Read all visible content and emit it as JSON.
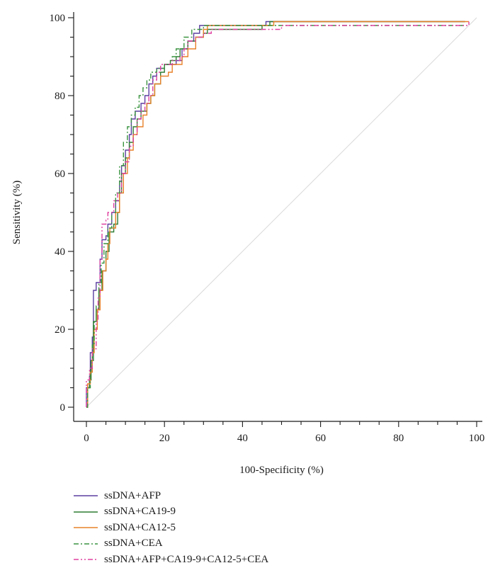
{
  "chart_data": {
    "type": "line",
    "title": "",
    "xlabel": "100-Specificity (%)",
    "ylabel": "Sensitivity (%)",
    "xlim": [
      0,
      100
    ],
    "ylim": [
      0,
      100
    ],
    "xticks": [
      0,
      20,
      40,
      60,
      80,
      100
    ],
    "yticks": [
      0,
      20,
      40,
      60,
      80,
      100
    ],
    "x_minor_step": 5,
    "y_minor_step": 5,
    "reference_line": {
      "from": [
        0,
        0
      ],
      "to": [
        100,
        100
      ],
      "color": "#d9d9d9"
    },
    "legend_position": "bottom-left",
    "series": [
      {
        "name": "ssDNA+AFP",
        "color": "#5b3fa0",
        "dash": "solid",
        "points": [
          [
            0,
            0
          ],
          [
            0,
            5
          ],
          [
            0.8,
            8
          ],
          [
            1,
            14
          ],
          [
            1.5,
            18
          ],
          [
            1.8,
            30
          ],
          [
            2.5,
            32
          ],
          [
            3.5,
            38
          ],
          [
            4,
            43
          ],
          [
            5,
            44
          ],
          [
            5.5,
            47
          ],
          [
            6.5,
            50
          ],
          [
            7.5,
            53
          ],
          [
            8.5,
            58
          ],
          [
            9,
            62
          ],
          [
            10,
            66
          ],
          [
            11,
            70
          ],
          [
            11.5,
            74
          ],
          [
            12.5,
            76
          ],
          [
            14,
            78
          ],
          [
            15,
            80
          ],
          [
            16,
            83
          ],
          [
            17,
            85
          ],
          [
            18,
            87
          ],
          [
            20,
            88
          ],
          [
            22,
            88
          ],
          [
            23,
            89
          ],
          [
            24.5,
            92
          ],
          [
            26,
            94
          ],
          [
            27.5,
            96
          ],
          [
            29,
            98
          ],
          [
            32,
            98
          ],
          [
            45,
            98
          ],
          [
            46,
            99
          ],
          [
            97,
            99
          ]
        ]
      },
      {
        "name": "ssDNA+CA19-9",
        "color": "#2e7d32",
        "dash": "solid",
        "points": [
          [
            0,
            0
          ],
          [
            0.3,
            5
          ],
          [
            0.8,
            7
          ],
          [
            1.2,
            12
          ],
          [
            1.8,
            22
          ],
          [
            2.5,
            25
          ],
          [
            3.2,
            30
          ],
          [
            4,
            35
          ],
          [
            5,
            40
          ],
          [
            5.8,
            45
          ],
          [
            7,
            47
          ],
          [
            8,
            50
          ],
          [
            8.5,
            55
          ],
          [
            9,
            60
          ],
          [
            10,
            64
          ],
          [
            11,
            68
          ],
          [
            12,
            72
          ],
          [
            13,
            74
          ],
          [
            14,
            76
          ],
          [
            15.5,
            78
          ],
          [
            16.5,
            80
          ],
          [
            17.5,
            83
          ],
          [
            19,
            86
          ],
          [
            20,
            88
          ],
          [
            21.5,
            89
          ],
          [
            23,
            90
          ],
          [
            24,
            92
          ],
          [
            26,
            94
          ],
          [
            28,
            95
          ],
          [
            30,
            96
          ],
          [
            31,
            97
          ],
          [
            45,
            98
          ],
          [
            47,
            99
          ],
          [
            97,
            99
          ]
        ]
      },
      {
        "name": "ssDNA+CA12-5",
        "color": "#e8822a",
        "dash": "solid",
        "points": [
          [
            0,
            0
          ],
          [
            0.3,
            6
          ],
          [
            1,
            9
          ],
          [
            1.5,
            14
          ],
          [
            2,
            20
          ],
          [
            2.8,
            25
          ],
          [
            3.5,
            30
          ],
          [
            4.2,
            35
          ],
          [
            5,
            38
          ],
          [
            5.5,
            42
          ],
          [
            6,
            46
          ],
          [
            7.5,
            50
          ],
          [
            8.5,
            55
          ],
          [
            9.5,
            60
          ],
          [
            10.5,
            64
          ],
          [
            11,
            66
          ],
          [
            12,
            70
          ],
          [
            13,
            72
          ],
          [
            14.5,
            75
          ],
          [
            15.5,
            78
          ],
          [
            16.5,
            80
          ],
          [
            17.5,
            83
          ],
          [
            19,
            85
          ],
          [
            21,
            86
          ],
          [
            22,
            88
          ],
          [
            24.5,
            90
          ],
          [
            26,
            92
          ],
          [
            28,
            95
          ],
          [
            30,
            97
          ],
          [
            31,
            98
          ],
          [
            48,
            99
          ],
          [
            98,
            99
          ]
        ]
      },
      {
        "name": "ssDNA+CEA",
        "color": "#3a9440",
        "dash": "dashdot",
        "points": [
          [
            0,
            0
          ],
          [
            0.3,
            5
          ],
          [
            1,
            10
          ],
          [
            1.5,
            16
          ],
          [
            2,
            22
          ],
          [
            2.5,
            26
          ],
          [
            3.2,
            32
          ],
          [
            3.8,
            37
          ],
          [
            4.5,
            42
          ],
          [
            5.5,
            46
          ],
          [
            6.5,
            50
          ],
          [
            7.5,
            55
          ],
          [
            8.5,
            62
          ],
          [
            9.5,
            68
          ],
          [
            10.5,
            72
          ],
          [
            11.5,
            75
          ],
          [
            12.5,
            77
          ],
          [
            13.5,
            80
          ],
          [
            14.5,
            82
          ],
          [
            15.5,
            84
          ],
          [
            16.5,
            86
          ],
          [
            18,
            87
          ],
          [
            20,
            88
          ],
          [
            22,
            90
          ],
          [
            23,
            92
          ],
          [
            25,
            95
          ],
          [
            27,
            97
          ],
          [
            29,
            97
          ],
          [
            30,
            98
          ],
          [
            46,
            98
          ],
          [
            48,
            98
          ],
          [
            97,
            98
          ]
        ]
      },
      {
        "name": "ssDNA+AFP+CA19-9+CA12-5+CEA",
        "color": "#e040a0",
        "dash": "dashdotdot",
        "points": [
          [
            0,
            0
          ],
          [
            0,
            7
          ],
          [
            0.8,
            10
          ],
          [
            1.5,
            15
          ],
          [
            2.5,
            22
          ],
          [
            3,
            28
          ],
          [
            3.5,
            38
          ],
          [
            4,
            47
          ],
          [
            5,
            48
          ],
          [
            5.5,
            50
          ],
          [
            7,
            53
          ],
          [
            8,
            55
          ],
          [
            9,
            60
          ],
          [
            10,
            63
          ],
          [
            11,
            67
          ],
          [
            12,
            70
          ],
          [
            13,
            74
          ],
          [
            14,
            76
          ],
          [
            15,
            78
          ],
          [
            16,
            80
          ],
          [
            17,
            84
          ],
          [
            18,
            86
          ],
          [
            19,
            88
          ],
          [
            21,
            88
          ],
          [
            22,
            89
          ],
          [
            24,
            90
          ],
          [
            25,
            92
          ],
          [
            26,
            94
          ],
          [
            28,
            95
          ],
          [
            30,
            96
          ],
          [
            32,
            97
          ],
          [
            48,
            97
          ],
          [
            50,
            98
          ],
          [
            98,
            98
          ],
          [
            98,
            99
          ]
        ]
      }
    ]
  }
}
